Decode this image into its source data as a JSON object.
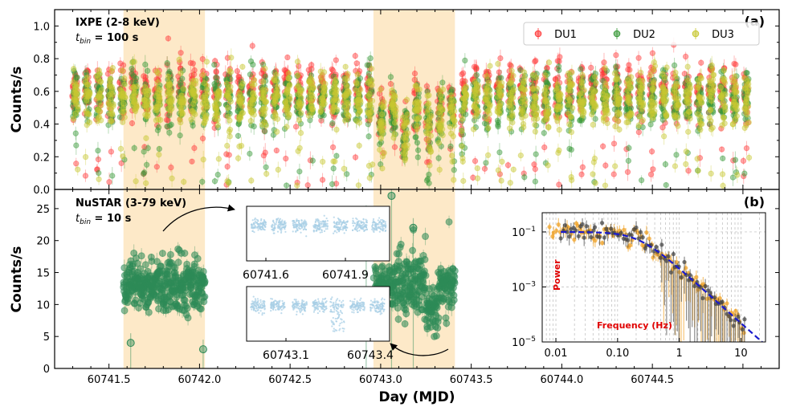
{
  "chart_data": [
    {
      "type": "scatter",
      "panel_label": "(a)",
      "instrument_label": "IXPE (2-8 keV)",
      "bin_label": {
        "prefix": "t",
        "subscript": "bin",
        "suffix": " = 100 s"
      },
      "ylabel": "Counts/s",
      "ylim": [
        0,
        1.1
      ],
      "yticks": [
        "0.0",
        "0.2",
        "0.4",
        "0.6",
        "0.8",
        "1.0"
      ],
      "xlim": [
        60741.2,
        60745.2
      ],
      "legend": {
        "placement": "top-right"
      },
      "series": [
        {
          "name": "DU1",
          "color": "#ff3b3b",
          "mean_rate": 0.6
        },
        {
          "name": "DU2",
          "color": "#3a9a3a",
          "mean_rate": 0.55
        },
        {
          "name": "DU3",
          "color": "#c8c832",
          "mean_rate": 0.55
        }
      ],
      "shaded_intervals": [
        [
          60741.58,
          60742.03
        ],
        [
          60742.96,
          60743.41
        ]
      ],
      "shade_color": "#fde9c8"
    },
    {
      "type": "scatter",
      "panel_label": "(b)",
      "instrument_label": "NuSTAR (3-79 keV)",
      "bin_label": {
        "prefix": "t",
        "subscript": "bin",
        "suffix": " = 10 s"
      },
      "ylabel": "Counts/s",
      "xlabel": "Day (MJD)",
      "ylim": [
        0,
        28
      ],
      "yticks": [
        "0",
        "5",
        "10",
        "15",
        "20",
        "25"
      ],
      "xlim": [
        60741.2,
        60745.2
      ],
      "xticks": [
        "60741.5",
        "60742.0",
        "60742.5",
        "60743.0",
        "60743.5",
        "60744.0",
        "60744.5"
      ],
      "series": [
        {
          "name": "NuSTAR",
          "color": "#2e8b57",
          "segments": [
            [
              60741.58,
              60742.03
            ],
            [
              60742.96,
              60743.41
            ]
          ],
          "mean_rate": 13
        }
      ]
    },
    {
      "type": "scatter",
      "role": "inset",
      "xticks": [
        "60741.6",
        "60741.9"
      ],
      "color": "#a8cfe6"
    },
    {
      "type": "scatter",
      "role": "inset",
      "xticks": [
        "60743.1",
        "60743.4"
      ],
      "color": "#a8cfe6"
    },
    {
      "type": "scatter",
      "role": "power-spectrum",
      "xlabel": "Frequency (Hz)",
      "ylabel": "Power",
      "xscale": "log",
      "yscale": "log",
      "xlim": [
        0.006,
        25
      ],
      "ylim": [
        1e-05,
        0.5
      ],
      "xticks": [
        "0.01",
        "0.10",
        "1",
        "10"
      ],
      "yticks": [
        "10^-1",
        "10^-3",
        "10^-5"
      ],
      "model": {
        "color": "#1a1acc",
        "break_frequency": 0.22,
        "low_level": 0.1,
        "slope": -2.0
      },
      "series": [
        {
          "name": "IXPE",
          "color": "#f0a020"
        },
        {
          "name": "NuSTAR",
          "color": "#404040"
        }
      ]
    }
  ]
}
